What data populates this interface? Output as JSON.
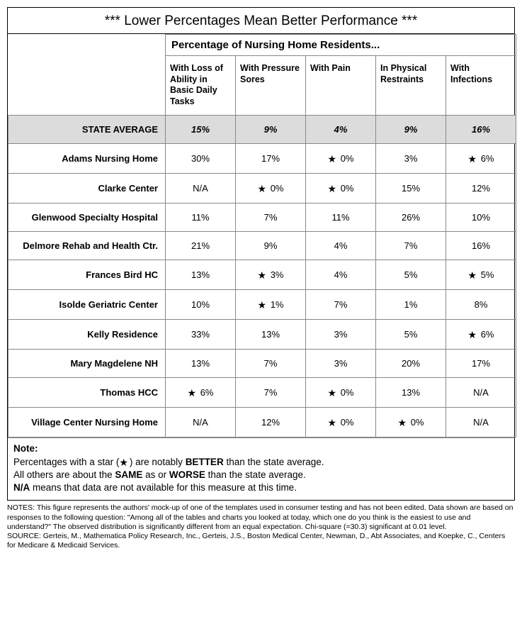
{
  "title": "*** Lower Percentages Mean Better Performance ***",
  "spanner": "Percentage of Nursing Home Residents...",
  "columns": [
    "With Loss of Ability in Basic Daily Tasks",
    "With Pressure Sores",
    "With Pain",
    "In Physical Restraints",
    "With Infections"
  ],
  "state_label": "STATE AVERAGE",
  "state_vals": [
    "15%",
    "9%",
    "4%",
    "9%",
    "16%"
  ],
  "rows": [
    {
      "label": "Adams Nursing Home",
      "cells": [
        {
          "v": "30%",
          "s": false
        },
        {
          "v": "17%",
          "s": false
        },
        {
          "v": "0%",
          "s": true
        },
        {
          "v": "3%",
          "s": false
        },
        {
          "v": "6%",
          "s": true
        }
      ]
    },
    {
      "label": "Clarke Center",
      "cells": [
        {
          "v": "N/A",
          "s": false
        },
        {
          "v": "0%",
          "s": true
        },
        {
          "v": "0%",
          "s": true
        },
        {
          "v": "15%",
          "s": false
        },
        {
          "v": "12%",
          "s": false
        }
      ]
    },
    {
      "label": "Glenwood Specialty Hospital",
      "cells": [
        {
          "v": "11%",
          "s": false
        },
        {
          "v": "7%",
          "s": false
        },
        {
          "v": "11%",
          "s": false
        },
        {
          "v": "26%",
          "s": false
        },
        {
          "v": "10%",
          "s": false
        }
      ]
    },
    {
      "label": "Delmore Rehab and Health Ctr.",
      "cells": [
        {
          "v": "21%",
          "s": false
        },
        {
          "v": "9%",
          "s": false
        },
        {
          "v": "4%",
          "s": false
        },
        {
          "v": "7%",
          "s": false
        },
        {
          "v": "16%",
          "s": false
        }
      ]
    },
    {
      "label": "Frances Bird HC",
      "cells": [
        {
          "v": "13%",
          "s": false
        },
        {
          "v": "3%",
          "s": true
        },
        {
          "v": "4%",
          "s": false
        },
        {
          "v": "5%",
          "s": false
        },
        {
          "v": "5%",
          "s": true
        }
      ]
    },
    {
      "label": "Isolde Geriatric Center",
      "cells": [
        {
          "v": "10%",
          "s": false
        },
        {
          "v": "1%",
          "s": true
        },
        {
          "v": "7%",
          "s": false
        },
        {
          "v": "1%",
          "s": false
        },
        {
          "v": "8%",
          "s": false
        }
      ]
    },
    {
      "label": "Kelly Residence",
      "cells": [
        {
          "v": "33%",
          "s": false
        },
        {
          "v": "13%",
          "s": false
        },
        {
          "v": "3%",
          "s": false
        },
        {
          "v": "5%",
          "s": false
        },
        {
          "v": "6%",
          "s": true
        }
      ]
    },
    {
      "label": "Mary Magdelene NH",
      "cells": [
        {
          "v": "13%",
          "s": false
        },
        {
          "v": "7%",
          "s": false
        },
        {
          "v": "3%",
          "s": false
        },
        {
          "v": "20%",
          "s": false
        },
        {
          "v": "17%",
          "s": false
        }
      ]
    },
    {
      "label": "Thomas HCC",
      "cells": [
        {
          "v": "6%",
          "s": true
        },
        {
          "v": "7%",
          "s": false
        },
        {
          "v": "0%",
          "s": true
        },
        {
          "v": "13%",
          "s": false
        },
        {
          "v": "N/A",
          "s": false
        }
      ]
    },
    {
      "label": "Village Center Nursing Home",
      "cells": [
        {
          "v": "N/A",
          "s": false
        },
        {
          "v": "12%",
          "s": false
        },
        {
          "v": "0%",
          "s": true
        },
        {
          "v": "0%",
          "s": true
        },
        {
          "v": "N/A",
          "s": false
        }
      ]
    }
  ],
  "note": {
    "heading": "Note:",
    "line1a": "Percentages with a star (",
    "line1b": ") are notably ",
    "better": "BETTER",
    "line1c": " than the state average.",
    "line2a": "All others are about the ",
    "same": "SAME",
    "line2b": " as or ",
    "worse": "WORSE",
    "line2c": " than the state average.",
    "line3a": "N/A",
    "line3b": " means that data are not available for this measure at this time."
  },
  "footnotes": {
    "notes": "NOTES: This figure represents the authors' mock-up of one of the templates used in consumer testing and has not been edited. Data shown are based on responses to the following question: \"Among all of the tables and charts you looked at today, which one do you think is the easiest to use and understand?\" The observed distribution is significantly different from an equal expectation. Chi-square (=30.3) significant at 0.01 level.",
    "source": "SOURCE: Gerteis, M., Mathematica Policy Research, Inc., Gerteis, J.S., Boston Medical Center, Newman, D., Abt Associates, and Koepke, C., Centers for Medicare & Medicaid Services."
  },
  "style": {
    "star_glyph": "★",
    "state_row_bg": "#dcdcdc",
    "border_color": "#888888"
  }
}
